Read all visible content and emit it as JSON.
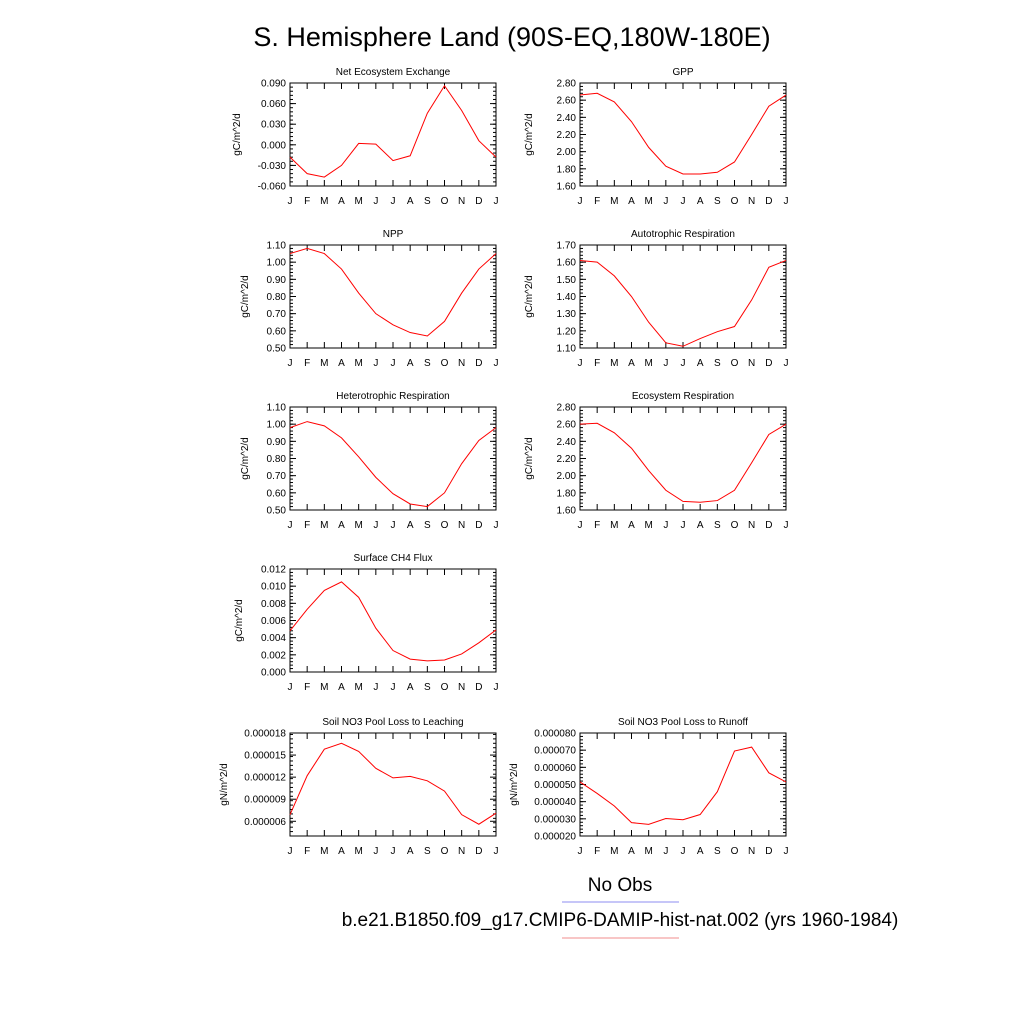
{
  "page_title": "S. Hemisphere Land (90S-EQ,180W-180E)",
  "legend": [
    {
      "label": "No Obs",
      "color": "#8c8cf2"
    },
    {
      "label": "b.e21.B1850.f09_g17.CMIP6-DAMIP-hist-nat.002 (yrs 1960-1984)",
      "color": "#f28c8c"
    }
  ],
  "series_color": "#ff0000",
  "chart_data": [
    {
      "type": "line",
      "title": "Net Ecosystem Exchange",
      "ylabel": "gC/m^2/d",
      "x": [
        "J",
        "F",
        "M",
        "A",
        "M",
        "J",
        "J",
        "A",
        "S",
        "O",
        "N",
        "D",
        "J"
      ],
      "ylim": [
        -0.06,
        0.09
      ],
      "yticks": [
        -0.06,
        -0.03,
        0.0,
        0.03,
        0.06,
        0.09
      ],
      "ytick_labels": [
        "-0.060",
        "-0.030",
        "0.000",
        "0.030",
        "0.060",
        "0.090"
      ],
      "series": [
        {
          "values": [
            -0.018,
            -0.042,
            -0.047,
            -0.03,
            0.002,
            0.001,
            -0.023,
            -0.016,
            0.046,
            0.086,
            0.05,
            0.006,
            -0.018
          ]
        }
      ]
    },
    {
      "type": "line",
      "title": "GPP",
      "ylabel": "gC/m^2/d",
      "x": [
        "J",
        "F",
        "M",
        "A",
        "M",
        "J",
        "J",
        "A",
        "S",
        "O",
        "N",
        "D",
        "J"
      ],
      "ylim": [
        1.6,
        2.8
      ],
      "yticks": [
        1.6,
        1.8,
        2.0,
        2.2,
        2.4,
        2.6,
        2.8
      ],
      "ytick_labels": [
        "1.60",
        "1.80",
        "2.00",
        "2.20",
        "2.40",
        "2.60",
        "2.80"
      ],
      "series": [
        {
          "values": [
            2.66,
            2.68,
            2.58,
            2.35,
            2.05,
            1.83,
            1.74,
            1.74,
            1.76,
            1.88,
            2.2,
            2.53,
            2.66
          ]
        }
      ]
    },
    {
      "type": "line",
      "title": "NPP",
      "ylabel": "gC/m^2/d",
      "x": [
        "J",
        "F",
        "M",
        "A",
        "M",
        "J",
        "J",
        "A",
        "S",
        "O",
        "N",
        "D",
        "J"
      ],
      "ylim": [
        0.5,
        1.1
      ],
      "yticks": [
        0.5,
        0.6,
        0.7,
        0.8,
        0.9,
        1.0,
        1.1
      ],
      "ytick_labels": [
        "0.50",
        "0.60",
        "0.70",
        "0.80",
        "0.90",
        "1.00",
        "1.10"
      ],
      "series": [
        {
          "values": [
            1.05,
            1.08,
            1.05,
            0.96,
            0.82,
            0.7,
            0.635,
            0.59,
            0.57,
            0.655,
            0.82,
            0.96,
            1.05
          ]
        }
      ]
    },
    {
      "type": "line",
      "title": "Autotrophic Respiration",
      "ylabel": "gC/m^2/d",
      "x": [
        "J",
        "F",
        "M",
        "A",
        "M",
        "J",
        "J",
        "A",
        "S",
        "O",
        "N",
        "D",
        "J"
      ],
      "ylim": [
        1.1,
        1.7
      ],
      "yticks": [
        1.1,
        1.2,
        1.3,
        1.4,
        1.5,
        1.6,
        1.7
      ],
      "ytick_labels": [
        "1.10",
        "1.20",
        "1.30",
        "1.40",
        "1.50",
        "1.60",
        "1.70"
      ],
      "series": [
        {
          "values": [
            1.61,
            1.6,
            1.52,
            1.4,
            1.25,
            1.13,
            1.11,
            1.155,
            1.195,
            1.225,
            1.38,
            1.57,
            1.61
          ]
        }
      ]
    },
    {
      "type": "line",
      "title": "Heterotrophic Respiration",
      "ylabel": "gC/m^2/d",
      "x": [
        "J",
        "F",
        "M",
        "A",
        "M",
        "J",
        "J",
        "A",
        "S",
        "O",
        "N",
        "D",
        "J"
      ],
      "ylim": [
        0.5,
        1.1
      ],
      "yticks": [
        0.5,
        0.6,
        0.7,
        0.8,
        0.9,
        1.0,
        1.1
      ],
      "ytick_labels": [
        "0.50",
        "0.60",
        "0.70",
        "0.80",
        "0.90",
        "1.00",
        "1.10"
      ],
      "series": [
        {
          "values": [
            0.98,
            1.015,
            0.99,
            0.92,
            0.81,
            0.69,
            0.595,
            0.535,
            0.52,
            0.6,
            0.77,
            0.905,
            0.98
          ]
        }
      ]
    },
    {
      "type": "line",
      "title": "Ecosystem Respiration",
      "ylabel": "gC/m^2/d",
      "x": [
        "J",
        "F",
        "M",
        "A",
        "M",
        "J",
        "J",
        "A",
        "S",
        "O",
        "N",
        "D",
        "J"
      ],
      "ylim": [
        1.6,
        2.8
      ],
      "yticks": [
        1.6,
        1.8,
        2.0,
        2.2,
        2.4,
        2.6,
        2.8
      ],
      "ytick_labels": [
        "1.60",
        "1.80",
        "2.00",
        "2.20",
        "2.40",
        "2.60",
        "2.80"
      ],
      "series": [
        {
          "values": [
            2.6,
            2.61,
            2.5,
            2.32,
            2.06,
            1.83,
            1.7,
            1.69,
            1.71,
            1.83,
            2.15,
            2.48,
            2.6
          ]
        }
      ]
    },
    {
      "type": "line",
      "title": "Surface CH4 Flux",
      "ylabel": "gC/m^2/d",
      "x": [
        "J",
        "F",
        "M",
        "A",
        "M",
        "J",
        "J",
        "A",
        "S",
        "O",
        "N",
        "D",
        "J"
      ],
      "ylim": [
        0.0,
        0.012
      ],
      "yticks": [
        0.0,
        0.002,
        0.004,
        0.006,
        0.008,
        0.01,
        0.012
      ],
      "ytick_labels": [
        "0.000",
        "0.002",
        "0.004",
        "0.006",
        "0.008",
        "0.010",
        "0.012"
      ],
      "series": [
        {
          "values": [
            0.0048,
            0.0073,
            0.0095,
            0.0105,
            0.0087,
            0.0051,
            0.0025,
            0.0015,
            0.0013,
            0.0014,
            0.0021,
            0.0034,
            0.0049
          ]
        }
      ]
    },
    {
      "type": "line",
      "title": "Soil NO3 Pool Loss to Leaching",
      "ylabel": "gN/m^2/d",
      "x": [
        "J",
        "F",
        "M",
        "A",
        "M",
        "J",
        "J",
        "A",
        "S",
        "O",
        "N",
        "D",
        "J"
      ],
      "ylim": [
        4e-06,
        1.8e-05
      ],
      "yticks": [
        6e-06,
        9e-06,
        1.2e-05,
        1.5e-05,
        1.8e-05
      ],
      "ytick_labels": [
        "0.000006",
        "0.000009",
        "0.000012",
        "0.000015",
        "0.000018"
      ],
      "series": [
        {
          "values": [
            6.9e-06,
            1.22e-05,
            1.58e-05,
            1.66e-05,
            1.55e-05,
            1.32e-05,
            1.19e-05,
            1.21e-05,
            1.15e-05,
            1.01e-05,
            6.9e-06,
            5.6e-06,
            7.1e-06
          ]
        }
      ]
    },
    {
      "type": "line",
      "title": "Soil NO3 Pool Loss to Runoff",
      "ylabel": "gN/m^2/d",
      "x": [
        "J",
        "F",
        "M",
        "A",
        "M",
        "J",
        "J",
        "A",
        "S",
        "O",
        "N",
        "D",
        "J"
      ],
      "ylim": [
        2e-05,
        8e-05
      ],
      "yticks": [
        2e-05,
        3e-05,
        4e-05,
        5e-05,
        6e-05,
        7e-05,
        8e-05
      ],
      "ytick_labels": [
        "0.000020",
        "0.000030",
        "0.000040",
        "0.000050",
        "0.000060",
        "0.000070",
        "0.000080"
      ],
      "series": [
        {
          "values": [
            5.15e-05,
            4.48e-05,
            3.75e-05,
            2.78e-05,
            2.68e-05,
            3.02e-05,
            2.95e-05,
            3.25e-05,
            4.58e-05,
            6.95e-05,
            7.18e-05,
            5.68e-05,
            5.15e-05
          ]
        }
      ]
    }
  ]
}
